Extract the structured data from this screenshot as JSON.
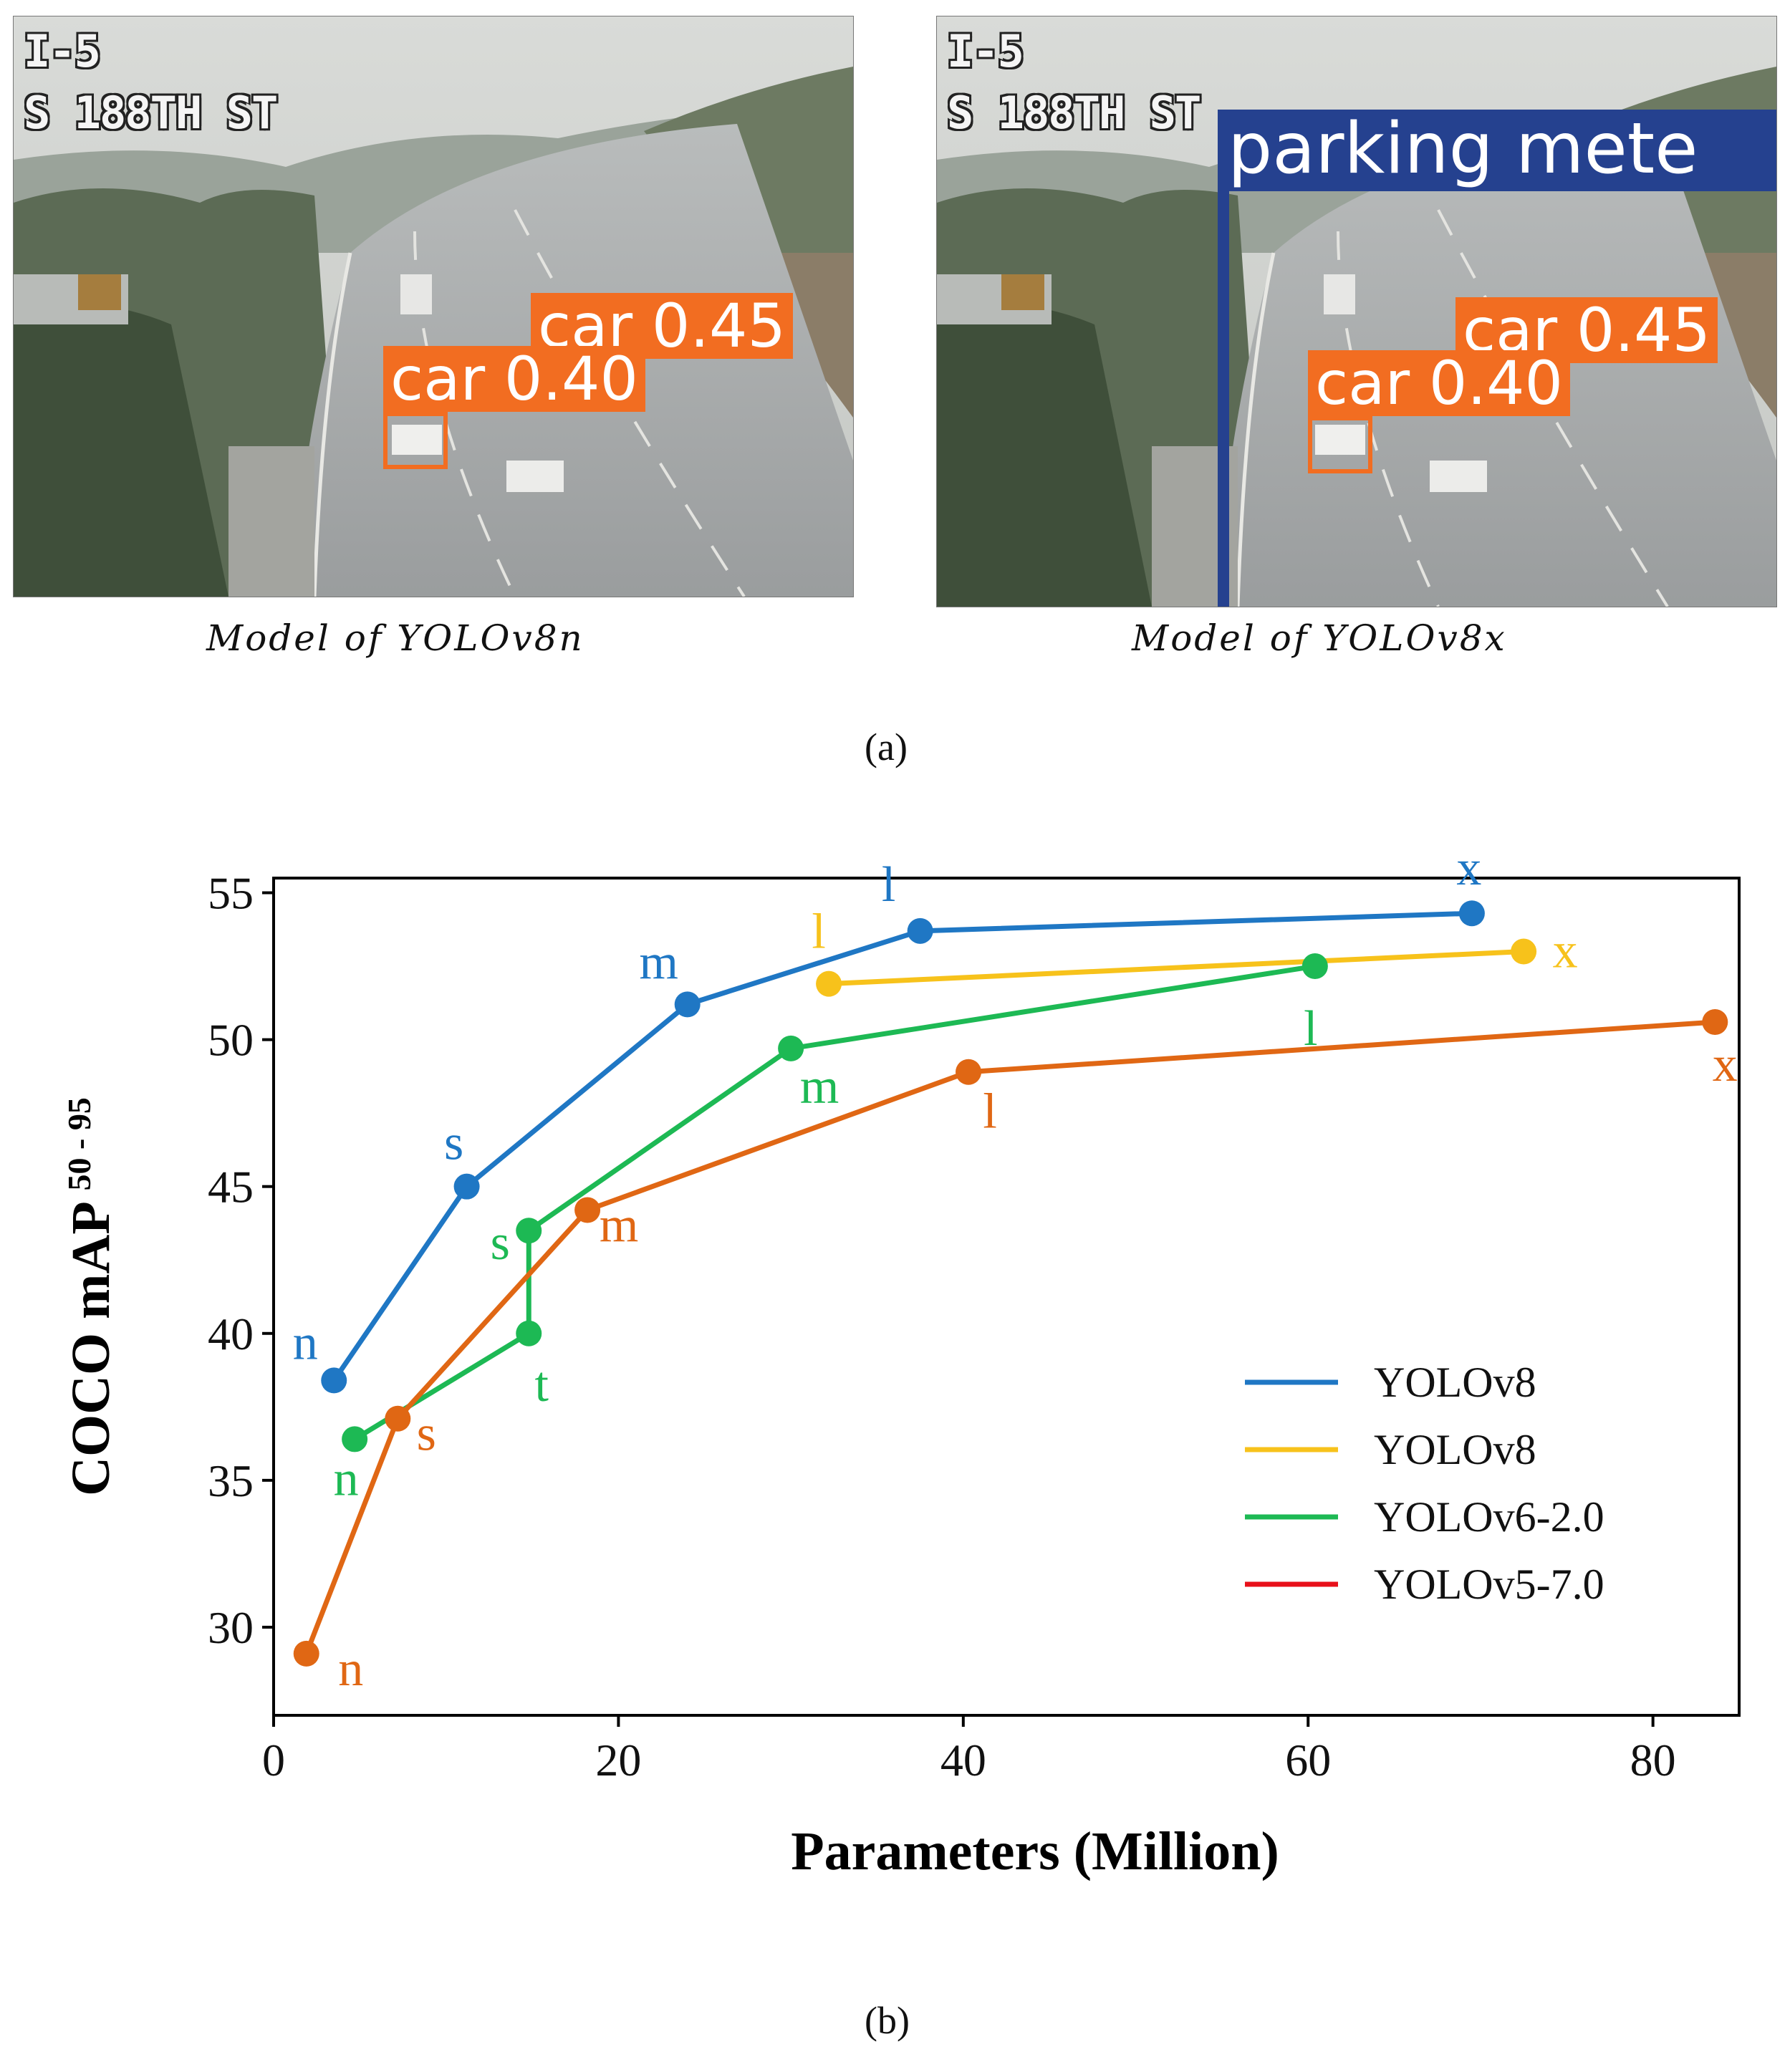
{
  "panel_a": {
    "left_image": {
      "overlay_line1": "I-5",
      "overlay_line2": "S 188TH ST",
      "detections": [
        "car 0.45",
        "car 0.40"
      ],
      "caption": "Model of YOLOv8n"
    },
    "right_image": {
      "overlay_line1": "I-5",
      "overlay_line2": "S 188TH ST",
      "detections": [
        "car 0.45",
        "car 0.40",
        "parking mete"
      ],
      "caption": "Model of YOLOv8x"
    },
    "sublabel": "(a)"
  },
  "panel_b": {
    "sublabel": "(b)"
  },
  "colors": {
    "yolov8_blue": "#1f77c4",
    "yolov8_yellow": "#f7c21b",
    "yolov6": "#1db954",
    "yolov5": "#e06714",
    "yolov5_legend": "#e8101a",
    "detection_box": "#f26d21",
    "parking_box": "#25418f"
  },
  "chart_data": {
    "type": "line",
    "title": "",
    "xlabel": "Parameters (Million)",
    "ylabel": "COCO mAP",
    "ylabel_superscript": "50 - 95",
    "xlim": [
      0,
      85
    ],
    "ylim": [
      27,
      55.5
    ],
    "xticks": [
      0,
      20,
      40,
      60,
      80
    ],
    "yticks": [
      30,
      35,
      40,
      45,
      50,
      55
    ],
    "grid": false,
    "legend_position": "center-right",
    "series": [
      {
        "name": "YOLOv8",
        "color": "#1f77c4",
        "legend_color": "#1f77c4",
        "points": [
          {
            "x": 3.5,
            "y": 38.4,
            "label": "n"
          },
          {
            "x": 11.2,
            "y": 45.0,
            "label": "s"
          },
          {
            "x": 24.0,
            "y": 51.2,
            "label": "m"
          },
          {
            "x": 37.5,
            "y": 53.7,
            "label": "l"
          },
          {
            "x": 69.5,
            "y": 54.3,
            "label": "x"
          }
        ]
      },
      {
        "name": "YOLOv8",
        "color": "#f7c21b",
        "legend_color": "#f7c21b",
        "points": [
          {
            "x": 32.2,
            "y": 51.9,
            "label": "l"
          },
          {
            "x": 72.5,
            "y": 53.0,
            "label": "x"
          }
        ]
      },
      {
        "name": "YOLOv6-2.0",
        "color": "#1db954",
        "legend_color": "#1db954",
        "points": [
          {
            "x": 4.7,
            "y": 36.4,
            "label": "n"
          },
          {
            "x": 14.8,
            "y": 40.0,
            "label": "t"
          },
          {
            "x": 14.8,
            "y": 43.5,
            "label": "s"
          },
          {
            "x": 30.0,
            "y": 49.7,
            "label": "m"
          },
          {
            "x": 60.4,
            "y": 52.5,
            "label": "l"
          }
        ]
      },
      {
        "name": "YOLOv5-7.0",
        "color": "#e06714",
        "legend_color": "#e8101a",
        "points": [
          {
            "x": 1.9,
            "y": 29.1,
            "label": "n"
          },
          {
            "x": 7.2,
            "y": 37.1,
            "label": "s"
          },
          {
            "x": 18.2,
            "y": 44.2,
            "label": "m"
          },
          {
            "x": 40.3,
            "y": 48.9,
            "label": "l"
          },
          {
            "x": 83.6,
            "y": 50.6,
            "label": "x"
          }
        ]
      }
    ]
  }
}
